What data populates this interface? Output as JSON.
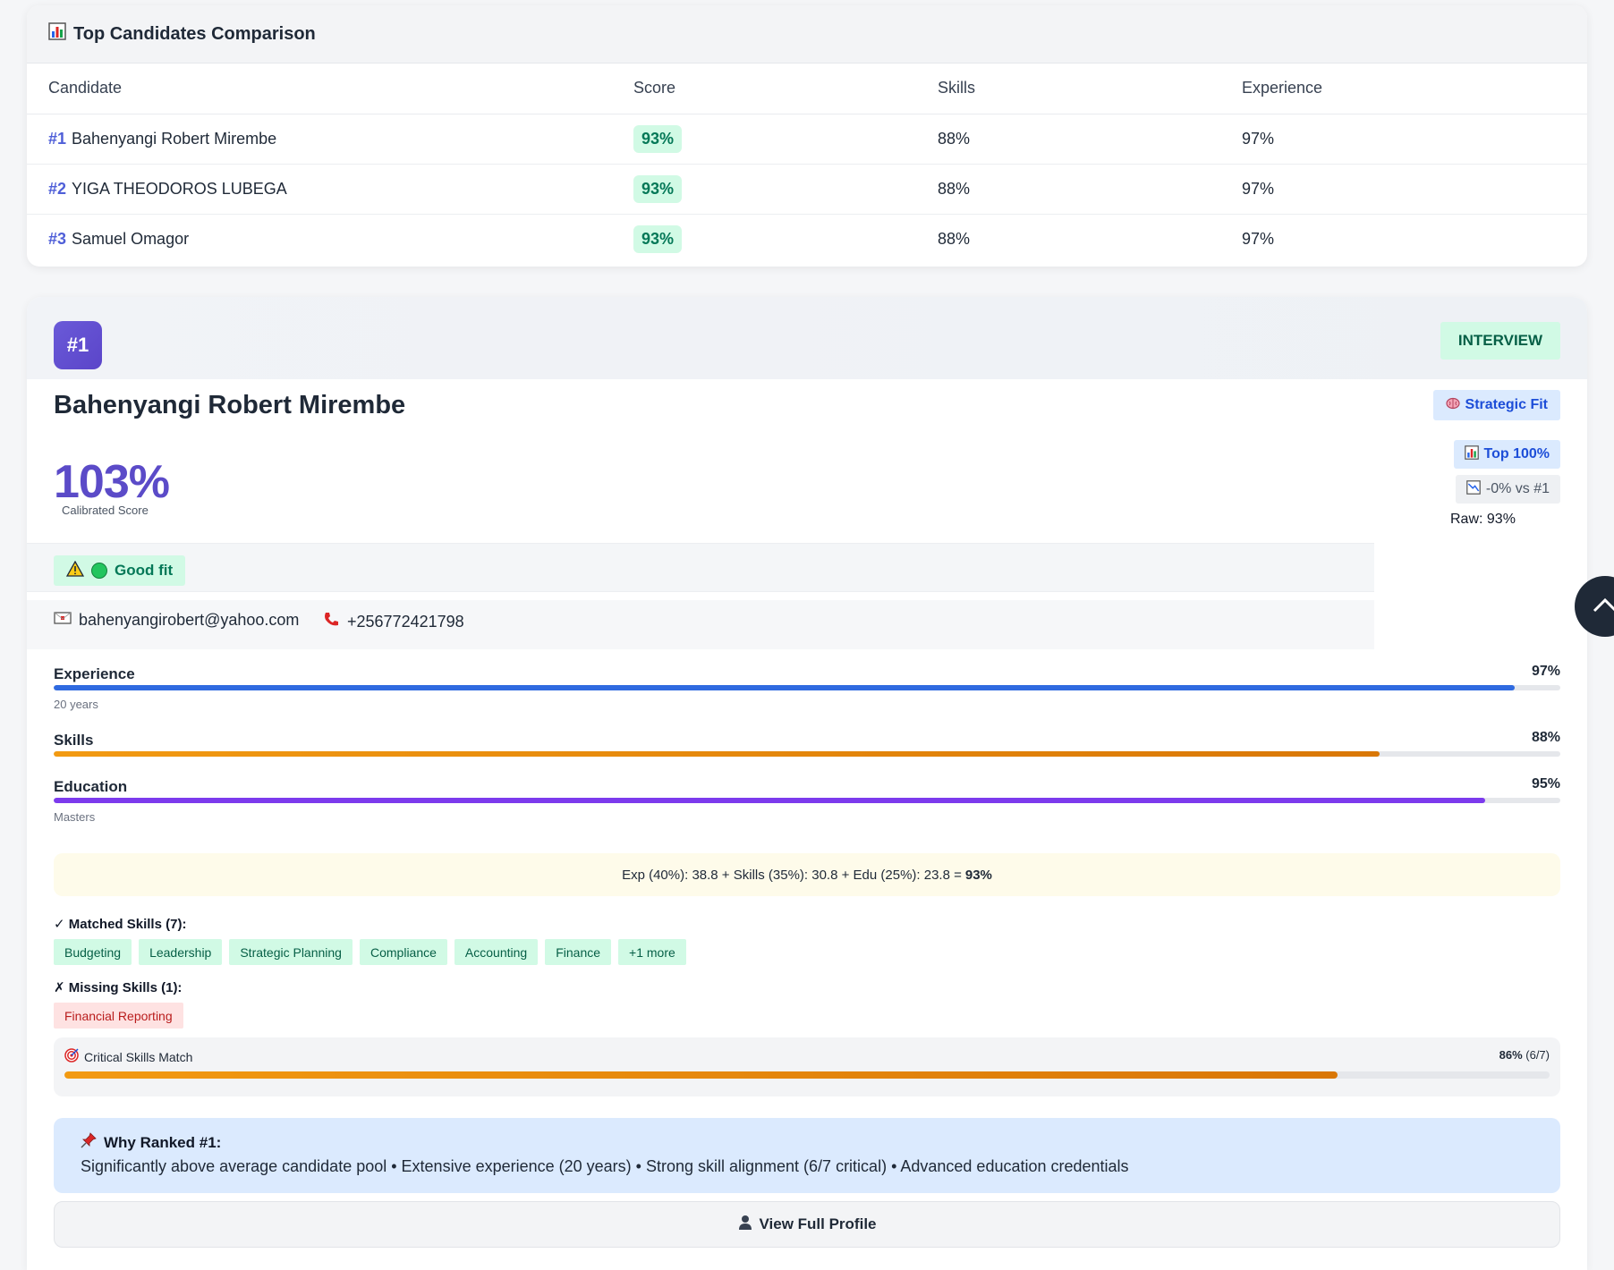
{
  "comparison": {
    "title": "Top Candidates Comparison",
    "icon": "bar-chart-icon",
    "headers": [
      "Candidate",
      "Score",
      "Skills",
      "Experience"
    ],
    "rows": [
      {
        "rank": "#1",
        "name": "Bahenyangi Robert Mirembe",
        "score": "93%",
        "skills": "88%",
        "experience": "97%"
      },
      {
        "rank": "#2",
        "name": "YIGA THEODOROS LUBEGA",
        "score": "93%",
        "skills": "88%",
        "experience": "97%"
      },
      {
        "rank": "#3",
        "name": "Samuel Omagor",
        "score": "93%",
        "skills": "88%",
        "experience": "97%"
      }
    ]
  },
  "candidate": {
    "rank": "#1",
    "status": "INTERVIEW",
    "name": "Bahenyangi Robert Mirembe",
    "strategic": "Strategic Fit",
    "top_percent": "Top 100%",
    "vs_first": "-0% vs #1",
    "raw": "Raw: 93%",
    "calibrated_score": "103%",
    "calibrated_label": "Calibrated Score",
    "fit": "Good fit",
    "email": "bahenyangirobert@yahoo.com",
    "phone": "+256772421798",
    "metrics": {
      "experience": {
        "label": "Experience",
        "value": "97%",
        "fraction": 0.97,
        "sub": "20 years"
      },
      "skills": {
        "label": "Skills",
        "value": "88%",
        "fraction": 0.88
      },
      "education": {
        "label": "Education",
        "value": "95%",
        "fraction": 0.95,
        "sub": "Masters"
      }
    },
    "formula": "Exp (40%): 38.8 + Skills (35%): 30.8 + Edu (25%): 23.8 =",
    "formula_total": "93%",
    "matched_header": "✓ Matched Skills (7):",
    "matched_skills": [
      "Budgeting",
      "Leadership",
      "Strategic Planning",
      "Compliance",
      "Accounting",
      "Finance",
      "+1 more"
    ],
    "missing_header": "✗ Missing Skills (1):",
    "missing_skills": [
      "Financial Reporting"
    ],
    "critical": {
      "label": "Critical Skills Match",
      "percent": "86%",
      "count": "(6/7)",
      "fraction": 0.857
    },
    "why_title": "Why Ranked #1:",
    "why_text": "Significantly above average candidate pool • Extensive experience (20 years) • Strong skill alignment (6/7 critical) • Advanced education credentials",
    "view_button": "View Full Profile"
  },
  "colors": {
    "accent_purple": "#5b4bc8",
    "exp_bar": "#2f6ae0",
    "skills_bar": "#d97706",
    "edu_bar": "#7c3aed",
    "good": "#047857"
  }
}
